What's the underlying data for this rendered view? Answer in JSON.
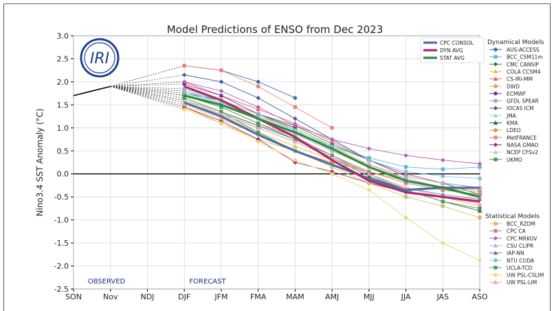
{
  "chart_data": {
    "type": "line",
    "title": "Model Predictions of ENSO from Dec 2023",
    "ylabel": "Nino3.4 SST Anomaly (°C)",
    "xlabel": "",
    "categories": [
      "SON",
      "Nov",
      "NDJ",
      "DJF",
      "JFM",
      "FMA",
      "MAM",
      "AMJ",
      "MJJ",
      "JJA",
      "JAS",
      "ASO"
    ],
    "ylim": [
      -2.5,
      3.0
    ],
    "yticks": [
      "3.0",
      "2.5",
      "2.0",
      "1.5",
      "1.0",
      "0.5",
      "0.0",
      "-0.5",
      "-1.0",
      "-1.5",
      "-2.0",
      "-2.5"
    ],
    "grid": true,
    "observed_label": "OBSERVED",
    "forecast_label": "FORECAST",
    "logo_text": "IRI",
    "observed": [
      1.7,
      1.9
    ],
    "summary_series": [
      {
        "name": "CPC CONSOL",
        "color": "#4a6fa8",
        "values": [
          null,
          null,
          null,
          1.55,
          1.25,
          0.85,
          0.5,
          0.2,
          -0.1,
          -0.35,
          -0.3,
          -0.3
        ]
      },
      {
        "name": "DYN AVG",
        "color": "#b0286e",
        "values": [
          null,
          null,
          null,
          1.9,
          1.6,
          1.2,
          0.8,
          0.3,
          -0.15,
          -0.4,
          -0.5,
          -0.6
        ]
      },
      {
        "name": "STAT AVG",
        "color": "#2e8b3a",
        "values": [
          null,
          null,
          null,
          1.7,
          1.5,
          1.2,
          0.9,
          0.55,
          0.15,
          -0.15,
          -0.3,
          -0.5
        ]
      }
    ],
    "dynamical_legend_title": "Dynamical Models",
    "dynamical_series": [
      {
        "name": "AUS-ACCESS",
        "color": "#3a6fb5",
        "marker": "circle",
        "values": [
          null,
          null,
          null,
          2.35,
          2.25,
          2.0,
          1.65,
          null,
          null,
          null,
          null,
          null
        ]
      },
      {
        "name": "BCC_CSM11m",
        "color": "#57b8e0",
        "marker": "square",
        "values": [
          null,
          null,
          null,
          1.8,
          1.6,
          1.3,
          1.0,
          0.6,
          0.35,
          0.15,
          0.1,
          0.15
        ]
      },
      {
        "name": "CMC CANSIP",
        "color": "#2e7d32",
        "marker": "diamond",
        "values": [
          null,
          null,
          null,
          1.75,
          1.6,
          1.3,
          1.05,
          0.65,
          0.3,
          0.0,
          -0.2,
          -0.45
        ]
      },
      {
        "name": "COLA CCSM4",
        "color": "#e8b84a",
        "marker": "triangle",
        "values": [
          null,
          null,
          null,
          1.6,
          1.3,
          0.9,
          0.6,
          0.3,
          -0.1,
          -0.3,
          -0.5,
          -0.7
        ]
      },
      {
        "name": "CS-IRI-MM",
        "color": "#e0607e",
        "marker": "triangle",
        "values": [
          null,
          null,
          null,
          2.0,
          1.7,
          1.4,
          1.1,
          0.7,
          0.3,
          0.0,
          -0.2,
          -0.3
        ]
      },
      {
        "name": "DWD",
        "color": "#d6b85a",
        "marker": "circle",
        "values": [
          null,
          null,
          null,
          1.7,
          1.5,
          1.25,
          1.0,
          0.6,
          0.2,
          -0.1,
          -0.3,
          -0.5
        ]
      },
      {
        "name": "ECMWF",
        "color": "#7a2a8a",
        "marker": "circle",
        "values": [
          null,
          null,
          null,
          1.95,
          1.7,
          1.3,
          1.0,
          null,
          null,
          null,
          null,
          null
        ]
      },
      {
        "name": "GFDL SPEAR",
        "color": "#a8a8a8",
        "marker": "square",
        "values": [
          null,
          null,
          null,
          1.85,
          1.6,
          1.3,
          0.95,
          0.5,
          0.15,
          -0.1,
          -0.3,
          -0.4
        ]
      },
      {
        "name": "IOCAS ICM",
        "color": "#3f5f9a",
        "marker": "diamond",
        "values": [
          null,
          null,
          null,
          2.15,
          2.0,
          1.65,
          1.2,
          0.75,
          0.3,
          -0.05,
          -0.2,
          -0.3
        ]
      },
      {
        "name": "JMA",
        "color": "#8fd3e8",
        "marker": "triangle",
        "values": [
          null,
          null,
          null,
          1.7,
          1.5,
          1.2,
          0.9,
          0.6,
          null,
          null,
          null,
          null
        ]
      },
      {
        "name": "KMA",
        "color": "#2f6b3c",
        "marker": "triangle",
        "values": [
          null,
          null,
          null,
          1.6,
          1.35,
          1.05,
          0.75,
          0.35,
          -0.05,
          -0.35,
          -0.6,
          -0.8
        ]
      },
      {
        "name": "LDEO",
        "color": "#e0a030",
        "marker": "circle",
        "values": [
          null,
          null,
          null,
          1.45,
          1.1,
          0.75,
          0.5,
          0.25,
          0.05,
          -0.15,
          -0.3,
          -0.35
        ]
      },
      {
        "name": "MetFRANCE",
        "color": "#f08080",
        "marker": "square",
        "values": [
          null,
          null,
          null,
          2.35,
          2.25,
          1.9,
          1.45,
          1.0,
          null,
          null,
          null,
          null
        ]
      },
      {
        "name": "NASA GMAO",
        "color": "#a0306a",
        "marker": "diamond",
        "values": [
          null,
          null,
          null,
          1.45,
          1.15,
          0.75,
          0.25,
          0.05,
          -0.2,
          -0.4,
          null,
          null
        ]
      },
      {
        "name": "NCEP CFSv2",
        "color": "#c8c8c8",
        "marker": "triangle",
        "values": [
          null,
          null,
          null,
          1.6,
          1.35,
          1.0,
          0.7,
          0.35,
          0.05,
          -0.2,
          -0.35,
          -0.45
        ]
      },
      {
        "name": "UKMO",
        "color": "#3a9a45",
        "marker": "square",
        "values": [
          null,
          null,
          null,
          1.65,
          1.35,
          0.9,
          0.5,
          null,
          null,
          null,
          null,
          null
        ]
      }
    ],
    "statistical_legend_title": "Statistical Models",
    "statistical_series": [
      {
        "name": "BCC_RZDM",
        "color": "#e0c060",
        "marker": "circle",
        "values": [
          null,
          null,
          null,
          1.5,
          1.2,
          0.85,
          0.5,
          0.15,
          -0.2,
          -0.5,
          -0.7,
          -0.95
        ]
      },
      {
        "name": "CPC CA",
        "color": "#d4788a",
        "marker": "square",
        "values": [
          null,
          null,
          null,
          1.7,
          1.45,
          1.1,
          0.8,
          0.4,
          0.05,
          -0.2,
          -0.35,
          -0.45
        ]
      },
      {
        "name": "CPC MRKOV",
        "color": "#b060b0",
        "marker": "diamond",
        "values": [
          null,
          null,
          null,
          2.0,
          1.8,
          1.45,
          1.05,
          0.75,
          0.55,
          0.4,
          0.3,
          0.22
        ]
      },
      {
        "name": "CSU CLIPR",
        "color": "#c8a8d8",
        "marker": "triangle",
        "values": [
          null,
          null,
          null,
          1.8,
          1.55,
          1.2,
          0.85,
          0.5,
          0.2,
          -0.05,
          -0.2,
          -0.3
        ]
      },
      {
        "name": "IAP-NN",
        "color": "#6a7aa0",
        "marker": "triangle",
        "values": [
          null,
          null,
          null,
          1.55,
          1.3,
          1.0,
          0.7,
          0.35,
          0.0,
          -0.3,
          -0.45,
          -0.55
        ]
      },
      {
        "name": "NTU CODA",
        "color": "#80c8e8",
        "marker": "circle",
        "values": [
          null,
          null,
          null,
          1.75,
          1.55,
          1.25,
          0.95,
          0.6,
          0.3,
          0.05,
          -0.05,
          -0.1
        ]
      },
      {
        "name": "UCLA-TCD",
        "color": "#4a9a5a",
        "marker": "square",
        "values": [
          null,
          null,
          null,
          1.7,
          1.45,
          1.1,
          0.75,
          0.4,
          0.0,
          -0.35,
          -0.6,
          -0.75
        ]
      },
      {
        "name": "UW PSL-CSLIM",
        "color": "#e8d870",
        "marker": "diamond",
        "values": [
          null,
          null,
          null,
          1.4,
          1.1,
          0.7,
          0.3,
          0.0,
          -0.35,
          -0.95,
          -1.5,
          -1.88
        ]
      },
      {
        "name": "UW PSL-LIM",
        "color": "#f0a0b8",
        "marker": "triangle",
        "values": [
          null,
          null,
          null,
          1.55,
          1.3,
          1.0,
          0.7,
          0.35,
          0.0,
          -0.3,
          -0.5,
          -0.65
        ]
      }
    ]
  }
}
